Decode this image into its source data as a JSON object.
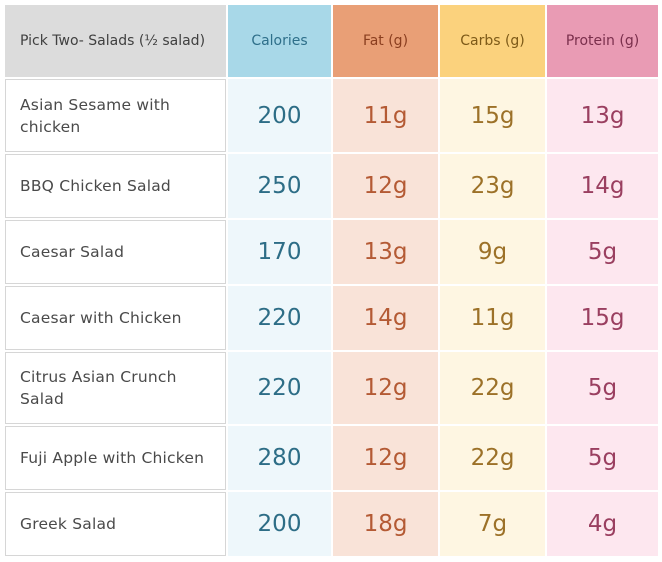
{
  "headers": {
    "item": "Pick Two- Salads (½ salad)",
    "calories": "Calories",
    "fat": "Fat (g)",
    "carbs": "Carbs (g)",
    "protein": "Protein (g)"
  },
  "rows": [
    {
      "name": "Asian Sesame with chicken",
      "calories": "200",
      "fat": "11g",
      "carbs": "15g",
      "protein": "13g"
    },
    {
      "name": "BBQ Chicken Salad",
      "calories": "250",
      "fat": "12g",
      "carbs": "23g",
      "protein": "14g"
    },
    {
      "name": "Caesar Salad",
      "calories": "170",
      "fat": "13g",
      "carbs": "9g",
      "protein": "5g"
    },
    {
      "name": "Caesar with Chicken",
      "calories": "220",
      "fat": "14g",
      "carbs": "11g",
      "protein": "15g"
    },
    {
      "name": "Citrus Asian Crunch Salad",
      "calories": "220",
      "fat": "12g",
      "carbs": "22g",
      "protein": "5g"
    },
    {
      "name": "Fuji Apple with Chicken",
      "calories": "280",
      "fat": "12g",
      "carbs": "22g",
      "protein": "5g"
    },
    {
      "name": "Greek Salad",
      "calories": "200",
      "fat": "18g",
      "carbs": "7g",
      "protein": "4g"
    }
  ],
  "colors": {
    "calories_header": "#a8d8e8",
    "fat_header": "#e99f76",
    "carbs_header": "#fbd27d",
    "protein_header": "#e99bb4",
    "item_header": "#dcdcdc"
  }
}
